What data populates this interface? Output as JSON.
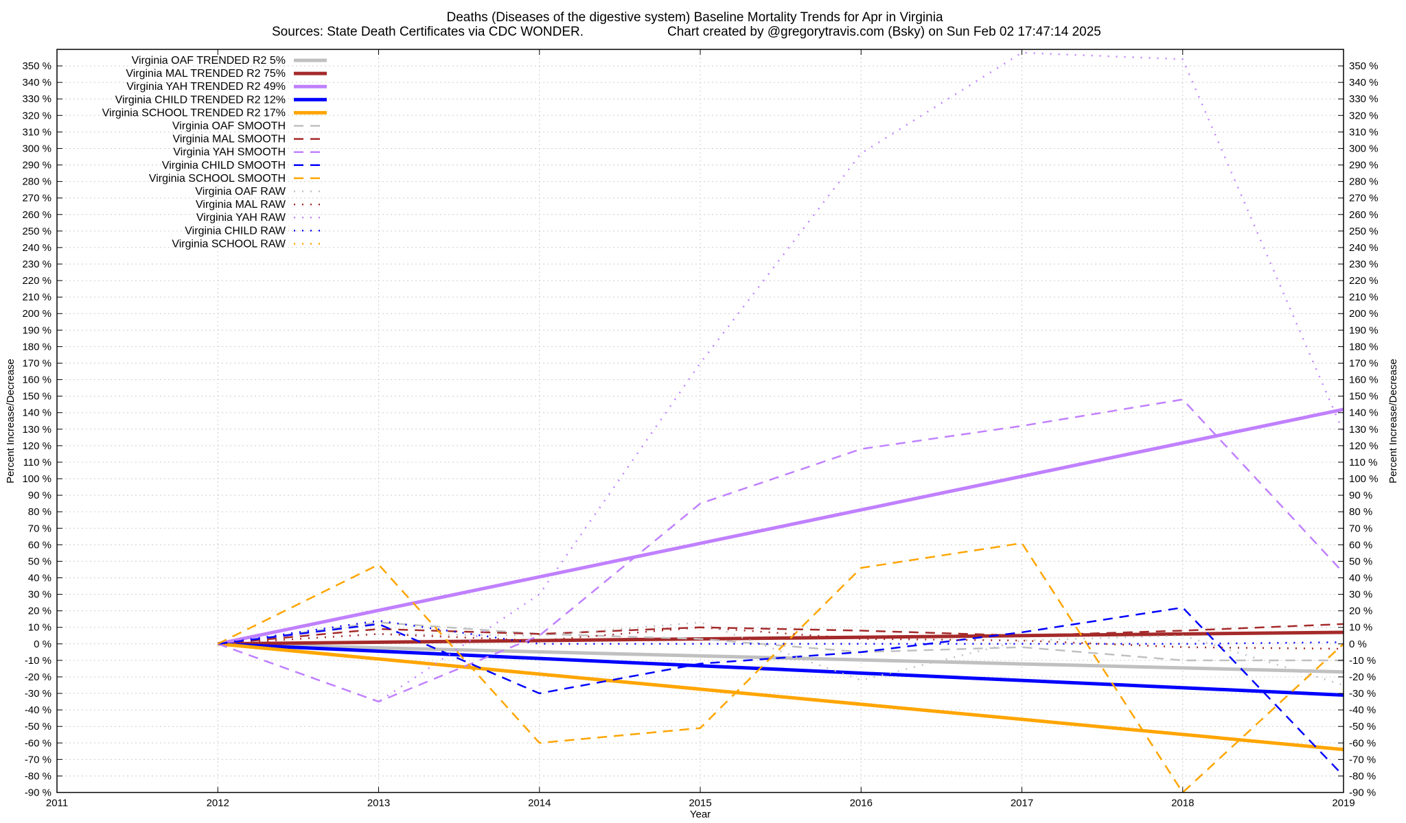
{
  "chart_data": {
    "type": "line",
    "title": "Deaths (Diseases of the digestive system)  Baseline Mortality Trends for Apr in Virginia",
    "subtitle_left": "Sources: State Death Certificates via CDC WONDER.",
    "subtitle_right": "Chart created by @gregorytravis.com (Bsky) on Sun Feb 02 17:47:14 2025",
    "xlabel": "Year",
    "ylabel": "Percent Increase/Decrease",
    "y2label": "Percent Increase/Decrease",
    "xlim": [
      2011,
      2019
    ],
    "ylim": [
      -90,
      360
    ],
    "xticks": [
      2011,
      2012,
      2013,
      2014,
      2015,
      2016,
      2017,
      2018,
      2019
    ],
    "ytick_step": 10,
    "ytick_range": [
      -90,
      350
    ],
    "ytick_suffix": " %",
    "grid": true,
    "legend_position": "top-left",
    "x": [
      2012,
      2013,
      2014,
      2015,
      2016,
      2017,
      2018,
      2019
    ],
    "series": [
      {
        "name": "Virginia OAF TRENDED R2  5%",
        "style": "trend",
        "color": "#c0c0c0",
        "x": [
          2012,
          2019
        ],
        "values": [
          0,
          -17
        ]
      },
      {
        "name": "Virginia MAL TRENDED R2  75%",
        "style": "trend",
        "color": "#a52a2a",
        "x": [
          2012,
          2019
        ],
        "values": [
          0,
          7
        ]
      },
      {
        "name": "Virginia YAH TRENDED R2  49%",
        "style": "trend",
        "color": "#c080ff",
        "x": [
          2012,
          2019
        ],
        "values": [
          0,
          142
        ]
      },
      {
        "name": "Virginia CHILD TRENDED R2  12%",
        "style": "trend",
        "color": "#0000ff",
        "x": [
          2012,
          2019
        ],
        "values": [
          0,
          -31
        ]
      },
      {
        "name": "Virginia SCHOOL TRENDED R2  17%",
        "style": "trend",
        "color": "#ffa500",
        "x": [
          2012,
          2019
        ],
        "values": [
          0,
          -64
        ]
      },
      {
        "name": "Virginia OAF SMOOTH",
        "style": "smooth",
        "color": "#c0c0c0",
        "values": [
          0,
          13,
          6,
          3,
          -5,
          -2,
          -10,
          -10
        ]
      },
      {
        "name": "Virginia MAL SMOOTH",
        "style": "smooth",
        "color": "#a52a2a",
        "values": [
          0,
          9,
          6,
          10,
          8,
          5,
          8,
          12
        ]
      },
      {
        "name": "Virginia YAH SMOOTH",
        "style": "smooth",
        "color": "#c080ff",
        "values": [
          0,
          -35,
          5,
          85,
          118,
          132,
          148,
          43
        ]
      },
      {
        "name": "Virginia CHILD SMOOTH",
        "style": "smooth",
        "color": "#0000ff",
        "values": [
          0,
          12,
          -30,
          -12,
          -5,
          7,
          22,
          -80
        ]
      },
      {
        "name": "Virginia SCHOOL SMOOTH",
        "style": "smooth",
        "color": "#ffa500",
        "values": [
          0,
          48,
          -60,
          -51,
          46,
          61,
          -90,
          0
        ]
      },
      {
        "name": "Virginia OAF RAW",
        "style": "raw",
        "color": "#c0c0c0",
        "values": [
          0,
          6,
          5,
          13,
          -22,
          2,
          5,
          -25
        ]
      },
      {
        "name": "Virginia MAL RAW",
        "style": "raw",
        "color": "#a52a2a",
        "values": [
          0,
          6,
          2,
          10,
          3,
          2,
          -2,
          -3
        ]
      },
      {
        "name": "Virginia YAH RAW",
        "style": "raw",
        "color": "#c080ff",
        "values": [
          0,
          -35,
          30,
          170,
          297,
          358,
          354,
          128
        ]
      },
      {
        "name": "Virginia CHILD RAW",
        "style": "raw",
        "color": "#0000ff",
        "values": [
          0,
          14,
          0,
          0,
          0,
          0,
          0,
          1
        ]
      },
      {
        "name": "Virginia SCHOOL RAW",
        "style": "raw",
        "color": "#ffa500",
        "values": [
          0,
          48,
          -60,
          -51,
          46,
          61,
          -90,
          0
        ]
      }
    ]
  }
}
